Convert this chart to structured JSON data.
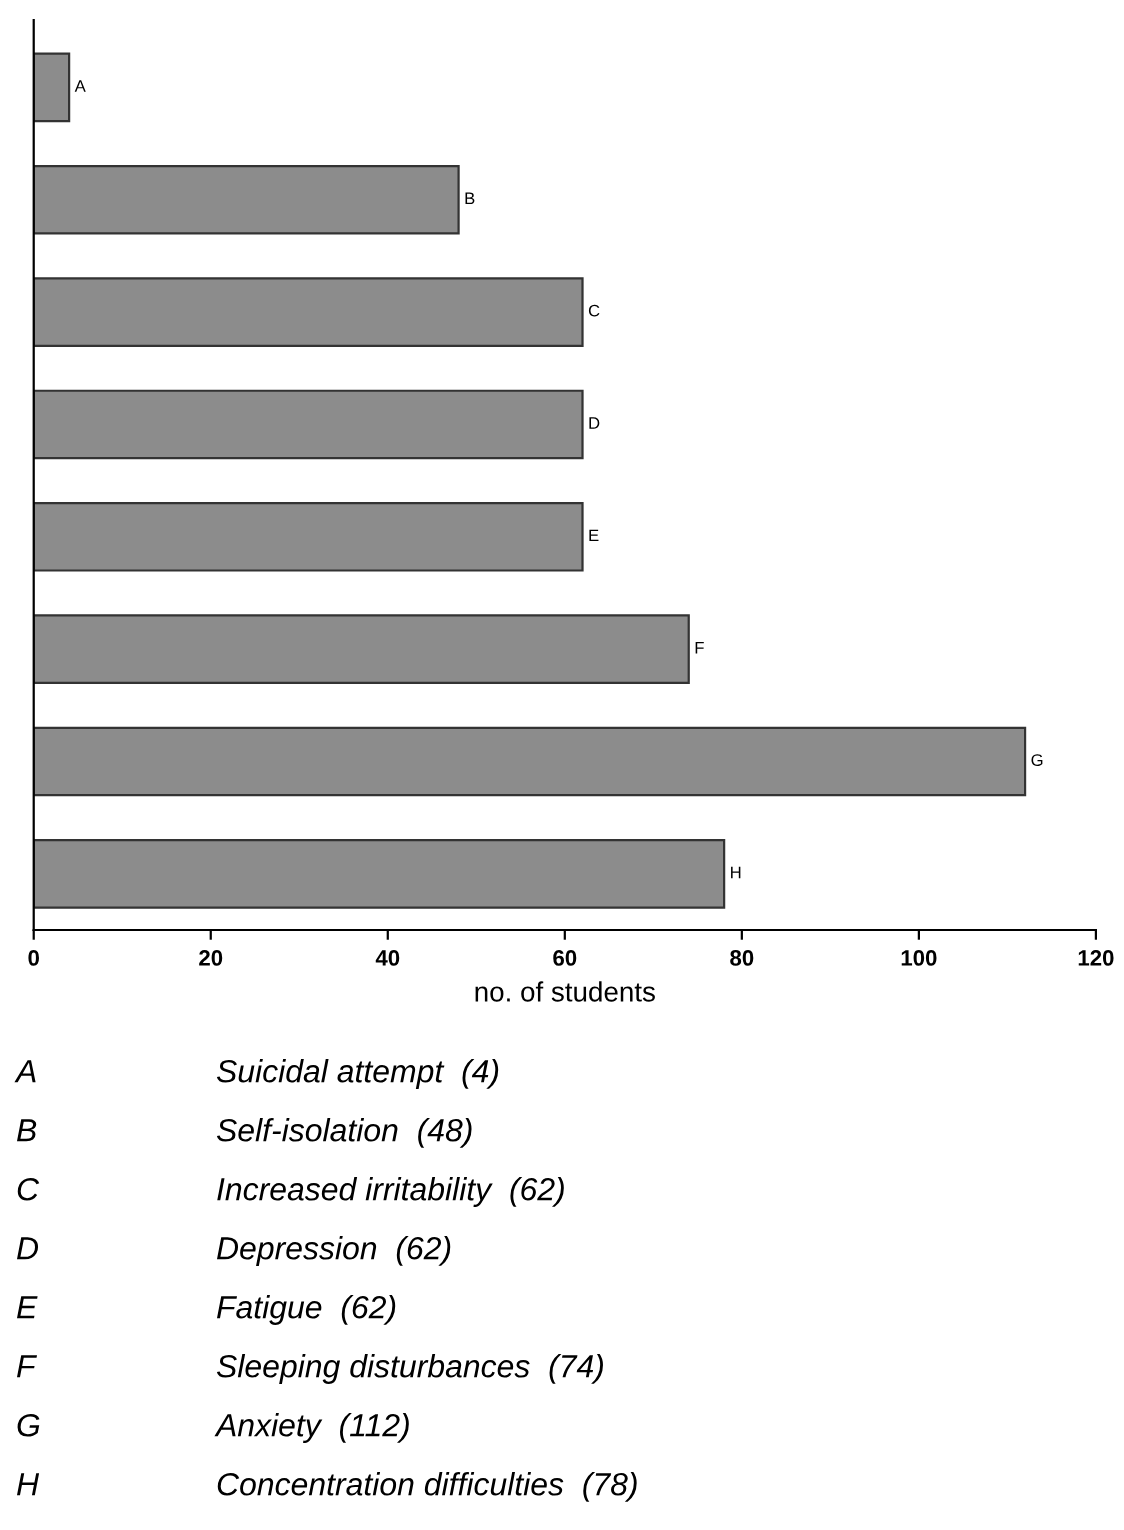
{
  "chart_data": {
    "type": "bar",
    "orientation": "horizontal",
    "xlabel": "no. of students",
    "categories": [
      null,
      null,
      null,
      null,
      null,
      null,
      null,
      null
    ],
    "values": [
      4,
      48,
      62,
      62,
      62,
      74,
      112,
      78
    ],
    "value_labels": [
      "A",
      "B",
      "C",
      "D",
      "E",
      "F",
      "G",
      "H"
    ],
    "color": "#8c8c8c",
    "xlim": [
      0,
      120
    ],
    "xticks": [
      0,
      20,
      40,
      60,
      80,
      100,
      120
    ],
    "grid": false,
    "legend": false,
    "annotations": [
      "A",
      "Suicidal attempt  (4)",
      "B",
      "Self-isolation  (48)",
      "C",
      "Increased irritability  (62)",
      "D",
      "Depression  (62)",
      "E",
      "Fatigue  (62)",
      "F",
      "Sleeping disturbances  (74)",
      "G",
      "Anxiety  (112)",
      "H",
      "Concentration difficulties  (78)"
    ]
  }
}
